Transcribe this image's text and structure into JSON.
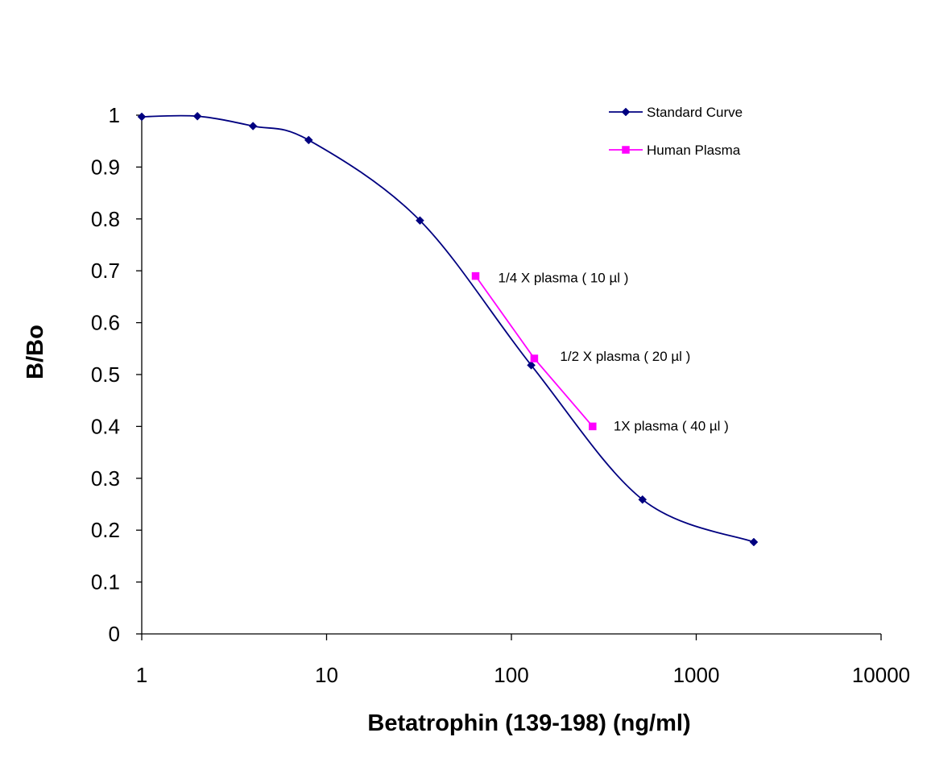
{
  "chart_data": {
    "type": "line",
    "title": "",
    "xlabel": "Betatrophin (139-198) (ng/ml)",
    "ylabel": "B/Bo",
    "x_scale": "log",
    "xlim": [
      1,
      10000
    ],
    "ylim": [
      0,
      1
    ],
    "x_ticks": [
      "1",
      "10",
      "100",
      "1000",
      "10000"
    ],
    "y_ticks": [
      "0",
      "0.1",
      "0.2",
      "0.3",
      "0.4",
      "0.5",
      "0.6",
      "0.7",
      "0.8",
      "0.9",
      "1"
    ],
    "grid": false,
    "legend_position": "top-right",
    "series": [
      {
        "name": "Standard Curve",
        "color": "#000080",
        "marker": "diamond",
        "smooth": true,
        "x": [
          1,
          2,
          4,
          8,
          32,
          128,
          512,
          2048
        ],
        "y": [
          0.997,
          0.998,
          0.979,
          0.952,
          0.797,
          0.518,
          0.259,
          0.177
        ]
      },
      {
        "name": "Human Plasma",
        "color": "#ff00ff",
        "marker": "square",
        "smooth": false,
        "x": [
          64,
          133,
          275
        ],
        "y": [
          0.69,
          0.531,
          0.4
        ]
      }
    ],
    "annotations": [
      {
        "text": "1/4 X  plasma  ( 10 µl )",
        "x": 64,
        "y": 0.69
      },
      {
        "text": "1/2 X  plasma ( 20 µl )",
        "x": 133,
        "y": 0.531
      },
      {
        "text": "1X  plasma ( 40 µl )",
        "x": 275,
        "y": 0.4
      }
    ]
  }
}
